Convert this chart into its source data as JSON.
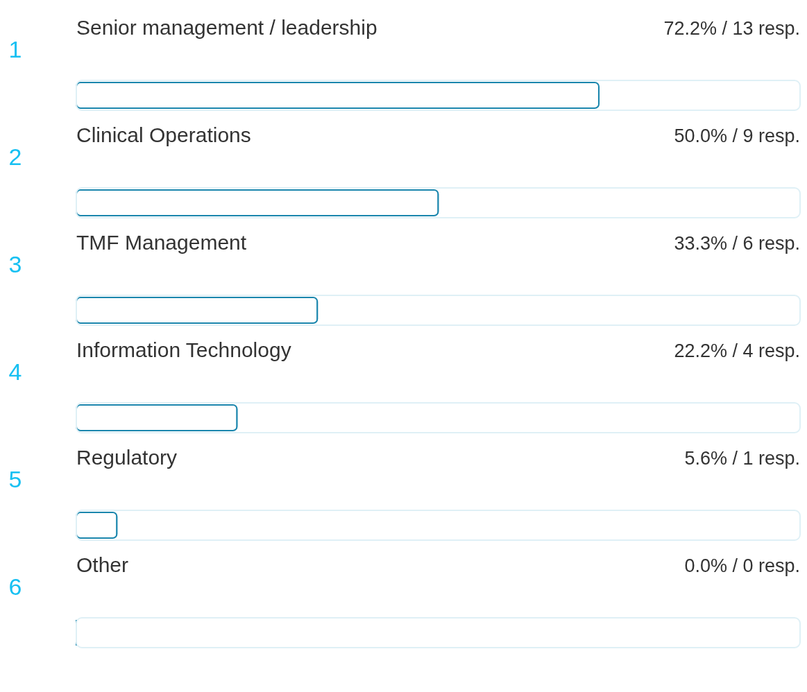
{
  "chart_data": {
    "type": "bar",
    "orientation": "horizontal",
    "categories": [
      "Senior management / leadership",
      "Clinical Operations",
      "TMF Management",
      "Information Technology",
      "Regulatory",
      "Other"
    ],
    "values": [
      72.2,
      50.0,
      33.3,
      22.2,
      5.6,
      0.0
    ],
    "value_labels": [
      "72.2% / 13 resp.",
      "50.0% / 9 resp.",
      "33.3% / 6 resp.",
      "22.2% / 4 resp.",
      "5.6% / 1 resp.",
      "0.0% / 0 resp."
    ],
    "color": "#1a86ad",
    "xlim": [
      0,
      100
    ],
    "annotations": [
      "1",
      "2",
      "3",
      "4",
      "5",
      "6"
    ]
  }
}
